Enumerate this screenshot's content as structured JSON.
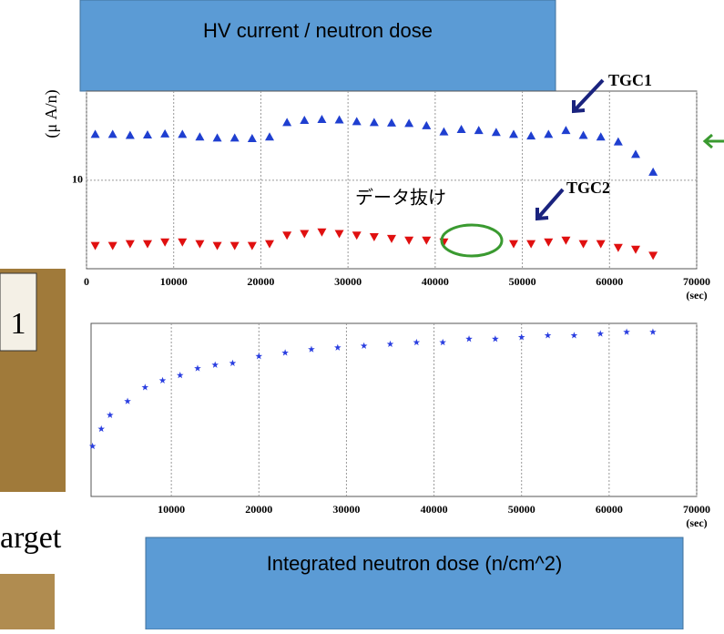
{
  "header_box": "HV current / neutron dose",
  "footer_box": "Integrated neutron dose (n/cm^2)",
  "fragments": [
    "1",
    "arget"
  ],
  "chart_data": [
    {
      "type": "scatter",
      "ylabel": "(μ A/n)",
      "xlabel": "(sec)",
      "annotations": [
        "TGC1",
        "TGC2",
        "データ抜け"
      ],
      "ylog": true,
      "grid": true,
      "x": [
        1000,
        3000,
        5000,
        7000,
        9000,
        11000,
        13000,
        15000,
        17000,
        19000,
        21000,
        23000,
        25000,
        27000,
        29000,
        31000,
        33000,
        35000,
        37000,
        39000,
        41000,
        43000,
        45000,
        47000,
        49000,
        51000,
        53000,
        55000,
        57000,
        59000,
        61000,
        63000,
        65000
      ],
      "series": [
        {
          "name": "TGC1",
          "color": "#1f3fd0",
          "marker": "triangle-up",
          "values": [
            17.0,
            17.0,
            16.8,
            16.9,
            17.1,
            17.0,
            16.5,
            16.3,
            16.3,
            16.2,
            16.5,
            19.5,
            20.0,
            20.2,
            20.1,
            19.7,
            19.5,
            19.4,
            19.3,
            18.8,
            17.5,
            18.0,
            17.8,
            17.4,
            17.0,
            16.7,
            17.0,
            17.8,
            16.8,
            16.5,
            15.6,
            13.5,
            11.0
          ]
        },
        {
          "name": "TGC2",
          "color": "#e01010",
          "marker": "triangle-down",
          "values": [
            4.7,
            4.7,
            4.8,
            4.8,
            4.9,
            4.9,
            4.8,
            4.7,
            4.7,
            4.7,
            4.8,
            5.3,
            5.4,
            5.5,
            5.4,
            5.3,
            5.2,
            5.1,
            5.0,
            5.0,
            4.9,
            null,
            null,
            null,
            4.8,
            4.8,
            4.9,
            5.0,
            4.8,
            4.8,
            4.6,
            4.5,
            4.2
          ]
        }
      ],
      "xlim": [
        0,
        70000
      ],
      "xticks": [
        0,
        10000,
        20000,
        30000,
        40000,
        50000,
        60000,
        70000
      ],
      "ylim": [
        3.6,
        28
      ],
      "yticks": [
        10
      ]
    },
    {
      "type": "scatter",
      "xlabel": "(sec)",
      "grid": true,
      "x": [
        1000,
        2000,
        3000,
        5000,
        7000,
        9000,
        11000,
        13000,
        15000,
        17000,
        20000,
        23000,
        26000,
        29000,
        32000,
        35000,
        38000,
        41000,
        44000,
        47000,
        50000,
        53000,
        56000,
        59000,
        62000,
        65000
      ],
      "series": [
        {
          "color": "#2a3ee0",
          "marker": "star",
          "values": [
            29,
            39,
            47,
            55,
            63,
            67,
            70,
            74,
            76,
            77,
            81,
            83,
            85,
            86,
            87,
            88,
            89,
            89,
            91,
            91,
            92,
            93,
            93,
            94,
            95,
            95
          ]
        }
      ],
      "xlim": [
        0,
        70000
      ],
      "xticks": [
        10000,
        20000,
        30000,
        40000,
        50000,
        60000,
        70000
      ],
      "ylim": [
        0,
        100
      ]
    }
  ]
}
